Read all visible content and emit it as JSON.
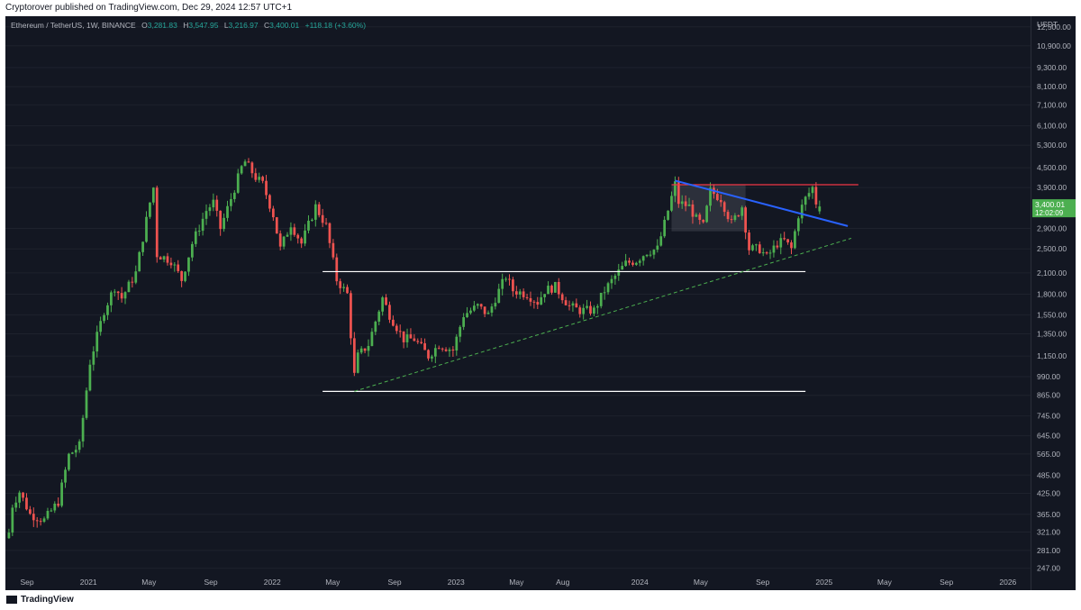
{
  "header": {
    "published_text": "Cryptorover published on TradingView.com, Dec 29, 2024 12:57 UTC+1"
  },
  "legend": {
    "symbol": "Ethereum / TetherUS, 1W, BINANCE",
    "open_label": "O",
    "open": "3,281.83",
    "high_label": "H",
    "high": "3,547.95",
    "low_label": "L",
    "low": "3,216.97",
    "close_label": "C",
    "close": "3,400.01",
    "change": "+118.18 (+3.60%)"
  },
  "price_axis": {
    "currency": "USDT",
    "current_price": "3,400.01",
    "countdown": "12:02:09"
  },
  "footer": {
    "brand": "TradingView"
  },
  "colors": {
    "background": "#131722",
    "up": "#26a69a",
    "up_candle": "#4caf50",
    "down_candle": "#ef5350",
    "resistance": "#f23645",
    "trendline": "#2962ff",
    "support_dashed": "#4caf50",
    "horizontal": "#ffffff"
  },
  "chart_data": {
    "type": "candlestick",
    "scale": "log",
    "ylim": [
      240,
      13500
    ],
    "y_ticks": [
      "12,500.00",
      "10,900.00",
      "9,300.00",
      "8,100.00",
      "7,100.00",
      "6,100.00",
      "5,300.00",
      "4,500.00",
      "3,900.00",
      "2,900.00",
      "2,500.00",
      "2,100.00",
      "1,800.00",
      "1,550.00",
      "1,350.00",
      "1,150.00",
      "990.00",
      "865.00",
      "745.00",
      "645.00",
      "565.00",
      "485.00",
      "425.00",
      "365.00",
      "321.00",
      "281.00",
      "247.00"
    ],
    "x_ticks": [
      {
        "label": "Sep",
        "date": "2020-09-01"
      },
      {
        "label": "2021",
        "date": "2021-01-01"
      },
      {
        "label": "May",
        "date": "2021-05-01"
      },
      {
        "label": "Sep",
        "date": "2021-09-01"
      },
      {
        "label": "2022",
        "date": "2022-01-01"
      },
      {
        "label": "May",
        "date": "2022-05-01"
      },
      {
        "label": "Sep",
        "date": "2022-09-01"
      },
      {
        "label": "2023",
        "date": "2023-01-01"
      },
      {
        "label": "May",
        "date": "2023-05-01"
      },
      {
        "label": "Aug",
        "date": "2023-08-01"
      },
      {
        "label": "2024",
        "date": "2024-01-01"
      },
      {
        "label": "May",
        "date": "2024-05-01"
      },
      {
        "label": "Sep",
        "date": "2024-09-01"
      },
      {
        "label": "2025",
        "date": "2025-01-01"
      },
      {
        "label": "May",
        "date": "2025-05-01"
      },
      {
        "label": "Sep",
        "date": "2025-09-01"
      },
      {
        "label": "2026",
        "date": "2026-01-01"
      }
    ],
    "xlim": [
      "2020-07-20",
      "2026-02-15"
    ],
    "close_path": [
      [
        "2020-07-27",
        320
      ],
      [
        "2020-08-03",
        390
      ],
      [
        "2020-08-17",
        430
      ],
      [
        "2020-09-07",
        365
      ],
      [
        "2020-10-05",
        350
      ],
      [
        "2020-11-02",
        400
      ],
      [
        "2020-11-23",
        560
      ],
      [
        "2020-12-14",
        600
      ],
      [
        "2021-01-04",
        1100
      ],
      [
        "2021-02-01",
        1600
      ],
      [
        "2021-02-22",
        1900
      ],
      [
        "2021-03-08",
        1750
      ],
      [
        "2021-04-05",
        2100
      ],
      [
        "2021-05-03",
        3500
      ],
      [
        "2021-05-10",
        3900
      ],
      [
        "2021-05-17",
        2400
      ],
      [
        "2021-06-14",
        2300
      ],
      [
        "2021-07-05",
        2000
      ],
      [
        "2021-07-26",
        2600
      ],
      [
        "2021-08-23",
        3300
      ],
      [
        "2021-09-06",
        3500
      ],
      [
        "2021-09-20",
        2900
      ],
      [
        "2021-10-11",
        3600
      ],
      [
        "2021-11-01",
        4500
      ],
      [
        "2021-11-08",
        4700
      ],
      [
        "2021-11-29",
        4200
      ],
      [
        "2021-12-13",
        4000
      ],
      [
        "2022-01-03",
        3200
      ],
      [
        "2022-01-17",
        2500
      ],
      [
        "2022-02-07",
        3000
      ],
      [
        "2022-02-28",
        2600
      ],
      [
        "2022-03-28",
        3400
      ],
      [
        "2022-04-18",
        2950
      ],
      [
        "2022-05-09",
        2000
      ],
      [
        "2022-05-30",
        1800
      ],
      [
        "2022-06-13",
        1000
      ],
      [
        "2022-06-20",
        1150
      ],
      [
        "2022-07-11",
        1250
      ],
      [
        "2022-08-08",
        1750
      ],
      [
        "2022-08-22",
        1550
      ],
      [
        "2022-09-19",
        1300
      ],
      [
        "2022-10-10",
        1300
      ],
      [
        "2022-11-07",
        1150
      ],
      [
        "2022-11-28",
        1250
      ],
      [
        "2022-12-26",
        1200
      ],
      [
        "2023-01-16",
        1550
      ],
      [
        "2023-02-13",
        1650
      ],
      [
        "2023-03-06",
        1550
      ],
      [
        "2023-03-20",
        1750
      ],
      [
        "2023-04-10",
        2050
      ],
      [
        "2023-04-24",
        1850
      ],
      [
        "2023-05-22",
        1800
      ],
      [
        "2023-06-12",
        1700
      ],
      [
        "2023-06-26",
        1850
      ],
      [
        "2023-07-17",
        1900
      ],
      [
        "2023-08-14",
        1650
      ],
      [
        "2023-09-04",
        1600
      ],
      [
        "2023-10-02",
        1600
      ],
      [
        "2023-10-23",
        1850
      ],
      [
        "2023-11-13",
        2050
      ],
      [
        "2023-12-04",
        2250
      ],
      [
        "2023-12-25",
        2300
      ],
      [
        "2024-01-15",
        2450
      ],
      [
        "2024-02-05",
        2500
      ],
      [
        "2024-02-19",
        3000
      ],
      [
        "2024-03-11",
        4000
      ],
      [
        "2024-03-18",
        3500
      ],
      [
        "2024-04-08",
        3400
      ],
      [
        "2024-04-22",
        3100
      ],
      [
        "2024-05-06",
        2950
      ],
      [
        "2024-05-20",
        3800
      ],
      [
        "2024-06-10",
        3600
      ],
      [
        "2024-07-01",
        3000
      ],
      [
        "2024-07-22",
        3400
      ],
      [
        "2024-08-05",
        2500
      ],
      [
        "2024-08-26",
        2500
      ],
      [
        "2024-09-09",
        2350
      ],
      [
        "2024-09-30",
        2600
      ],
      [
        "2024-10-14",
        2650
      ],
      [
        "2024-10-28",
        2500
      ],
      [
        "2024-11-11",
        3200
      ],
      [
        "2024-11-25",
        3600
      ],
      [
        "2024-12-09",
        3900
      ],
      [
        "2024-12-16",
        3500
      ],
      [
        "2024-12-23",
        3400
      ]
    ],
    "last_candle": {
      "date": "2024-12-23",
      "open": 3281.83,
      "high": 3547.95,
      "low": 3216.97,
      "close": 3400.01
    },
    "levels": [
      {
        "name": "resistance",
        "price": 3980,
        "from": "2024-03-04",
        "to": "2025-03-10"
      },
      {
        "name": "range-top",
        "price": 2120,
        "from": "2022-04-11",
        "to": "2024-11-25"
      },
      {
        "name": "range-bottom",
        "price": 890,
        "from": "2022-04-11",
        "to": "2024-11-25"
      }
    ],
    "trendlines": [
      {
        "name": "descending-trendline",
        "from": [
          "2024-03-11",
          4100
        ],
        "to": [
          "2025-02-17",
          2950
        ],
        "style": "solid"
      },
      {
        "name": "ascending-support",
        "from": [
          "2022-06-13",
          890
        ],
        "to": [
          "2025-02-24",
          2700
        ],
        "style": "dashed"
      }
    ],
    "consolidation_box": {
      "from": "2024-03-04",
      "to": "2024-07-29",
      "price_top": 3980,
      "price_bottom": 2840
    }
  }
}
